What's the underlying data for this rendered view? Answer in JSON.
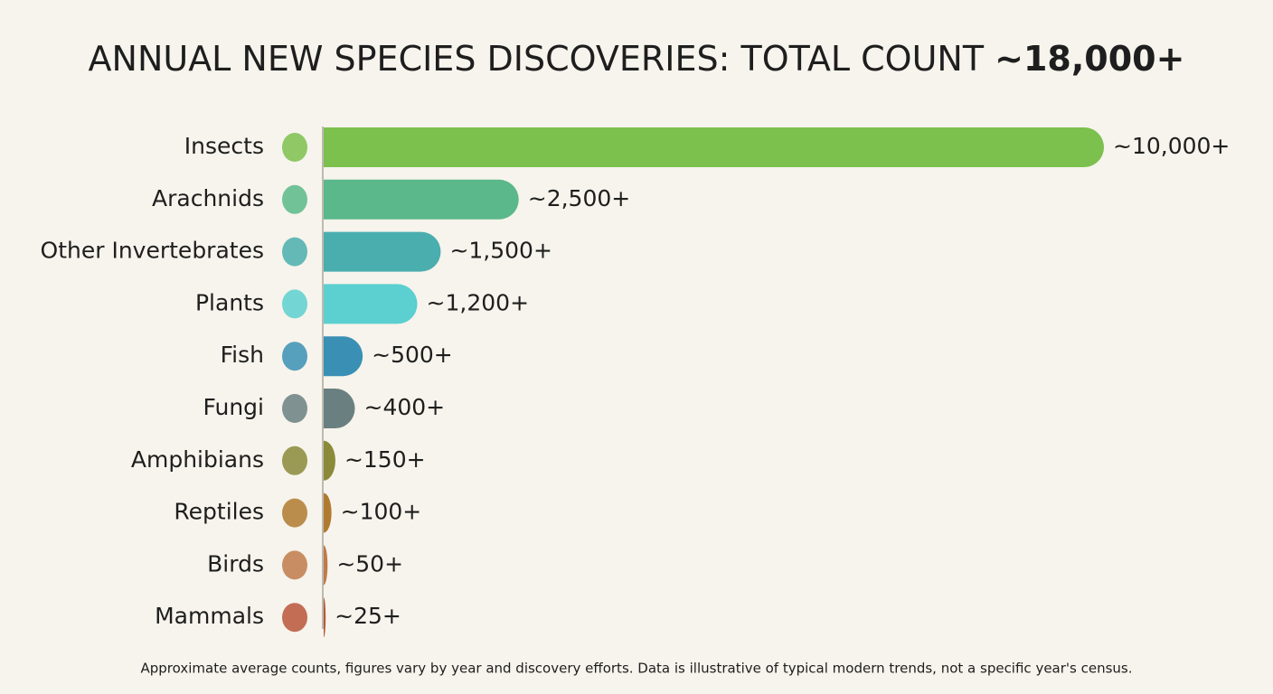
{
  "chart_data": {
    "type": "bar",
    "orientation": "horizontal",
    "title": "ANNUAL NEW SPECIES DISCOVERIES: TOTAL COUNT",
    "title_highlight": "~18,000+",
    "categories": [
      "Insects",
      "Arachnids",
      "Other Invertebrates",
      "Plants",
      "Fish",
      "Fungi",
      "Amphibians",
      "Reptiles",
      "Birds",
      "Mammals"
    ],
    "values": [
      10000,
      2500,
      1500,
      1200,
      500,
      400,
      150,
      100,
      50,
      25
    ],
    "value_labels": [
      "~10,000+",
      "~2,500+",
      "~1,500+",
      "~1,200+",
      "~500+",
      "~400+",
      "~150+",
      "~100+",
      "~50+",
      "~25+"
    ],
    "colors": [
      "#7cc04e",
      "#5bb88a",
      "#4aaeae",
      "#5ccfd0",
      "#3a8fb5",
      "#6a7f80",
      "#8a8a3a",
      "#b07a30",
      "#c07a4a",
      "#b8553a"
    ],
    "xlim": [
      0,
      10000
    ],
    "footnote": "Approximate average counts, figures vary by year and discovery efforts. Data is illustrative of typical modern trends, not a specific year's census."
  }
}
